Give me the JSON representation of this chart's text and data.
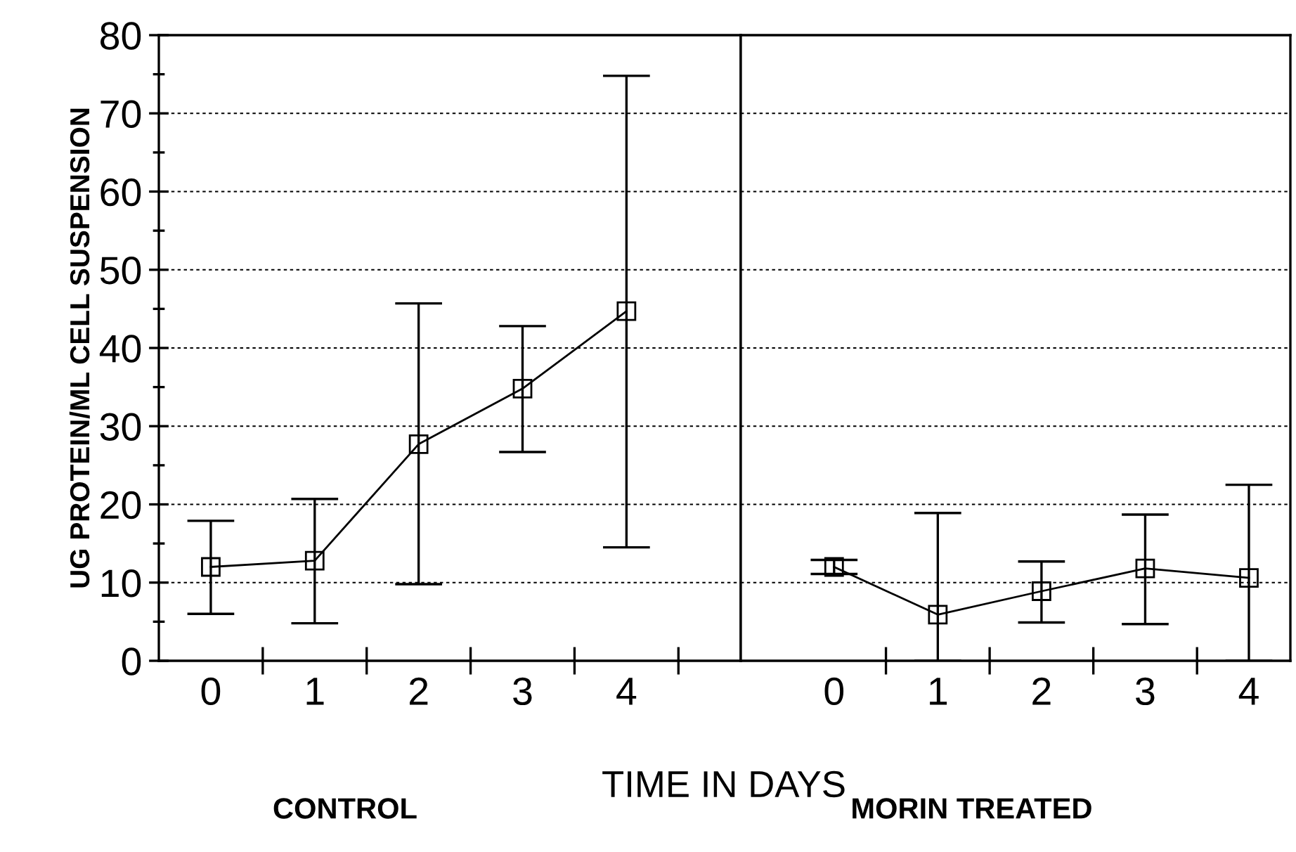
{
  "chart_data": [
    {
      "type": "line",
      "title": "CONTROL",
      "xlabel": "TIME IN DAYS",
      "ylabel": "UG PROTEIN/ML CELL SUSPENSION",
      "categories": [
        "0",
        "1",
        "2",
        "3",
        "4"
      ],
      "series": [
        {
          "color": "#000000",
          "values": [
            12.0,
            12.8,
            27.7,
            34.8,
            44.7
          ],
          "errors": [
            [
              6.0,
              17.9
            ],
            [
              4.8,
              20.7
            ],
            [
              9.8,
              45.7
            ],
            [
              26.7,
              42.8
            ],
            [
              14.5,
              74.8
            ]
          ]
        }
      ],
      "ylim": [
        0,
        80
      ],
      "yticks": [
        0,
        10,
        20,
        30,
        40,
        50,
        60,
        70,
        80
      ],
      "grid": "y",
      "marker": "square",
      "line_style": "solid"
    },
    {
      "type": "line",
      "title": "MORIN TREATED",
      "categories": [
        "0",
        "1",
        "2",
        "3",
        "4"
      ],
      "series": [
        {
          "color": "#000000",
          "values": [
            12.0,
            5.9,
            8.9,
            11.8,
            10.6
          ],
          "errors": [
            [
              11.1,
              12.9
            ],
            [
              0,
              18.9
            ],
            [
              4.9,
              12.7
            ],
            [
              4.7,
              18.7
            ],
            [
              0,
              22.5
            ]
          ]
        }
      ],
      "ylim": [
        0,
        80
      ],
      "yticks": [
        0,
        10,
        20,
        30,
        40,
        50,
        60,
        70,
        80
      ],
      "tick_labels": "x",
      "grid": "y",
      "marker": "square",
      "line_style": "solid"
    }
  ]
}
